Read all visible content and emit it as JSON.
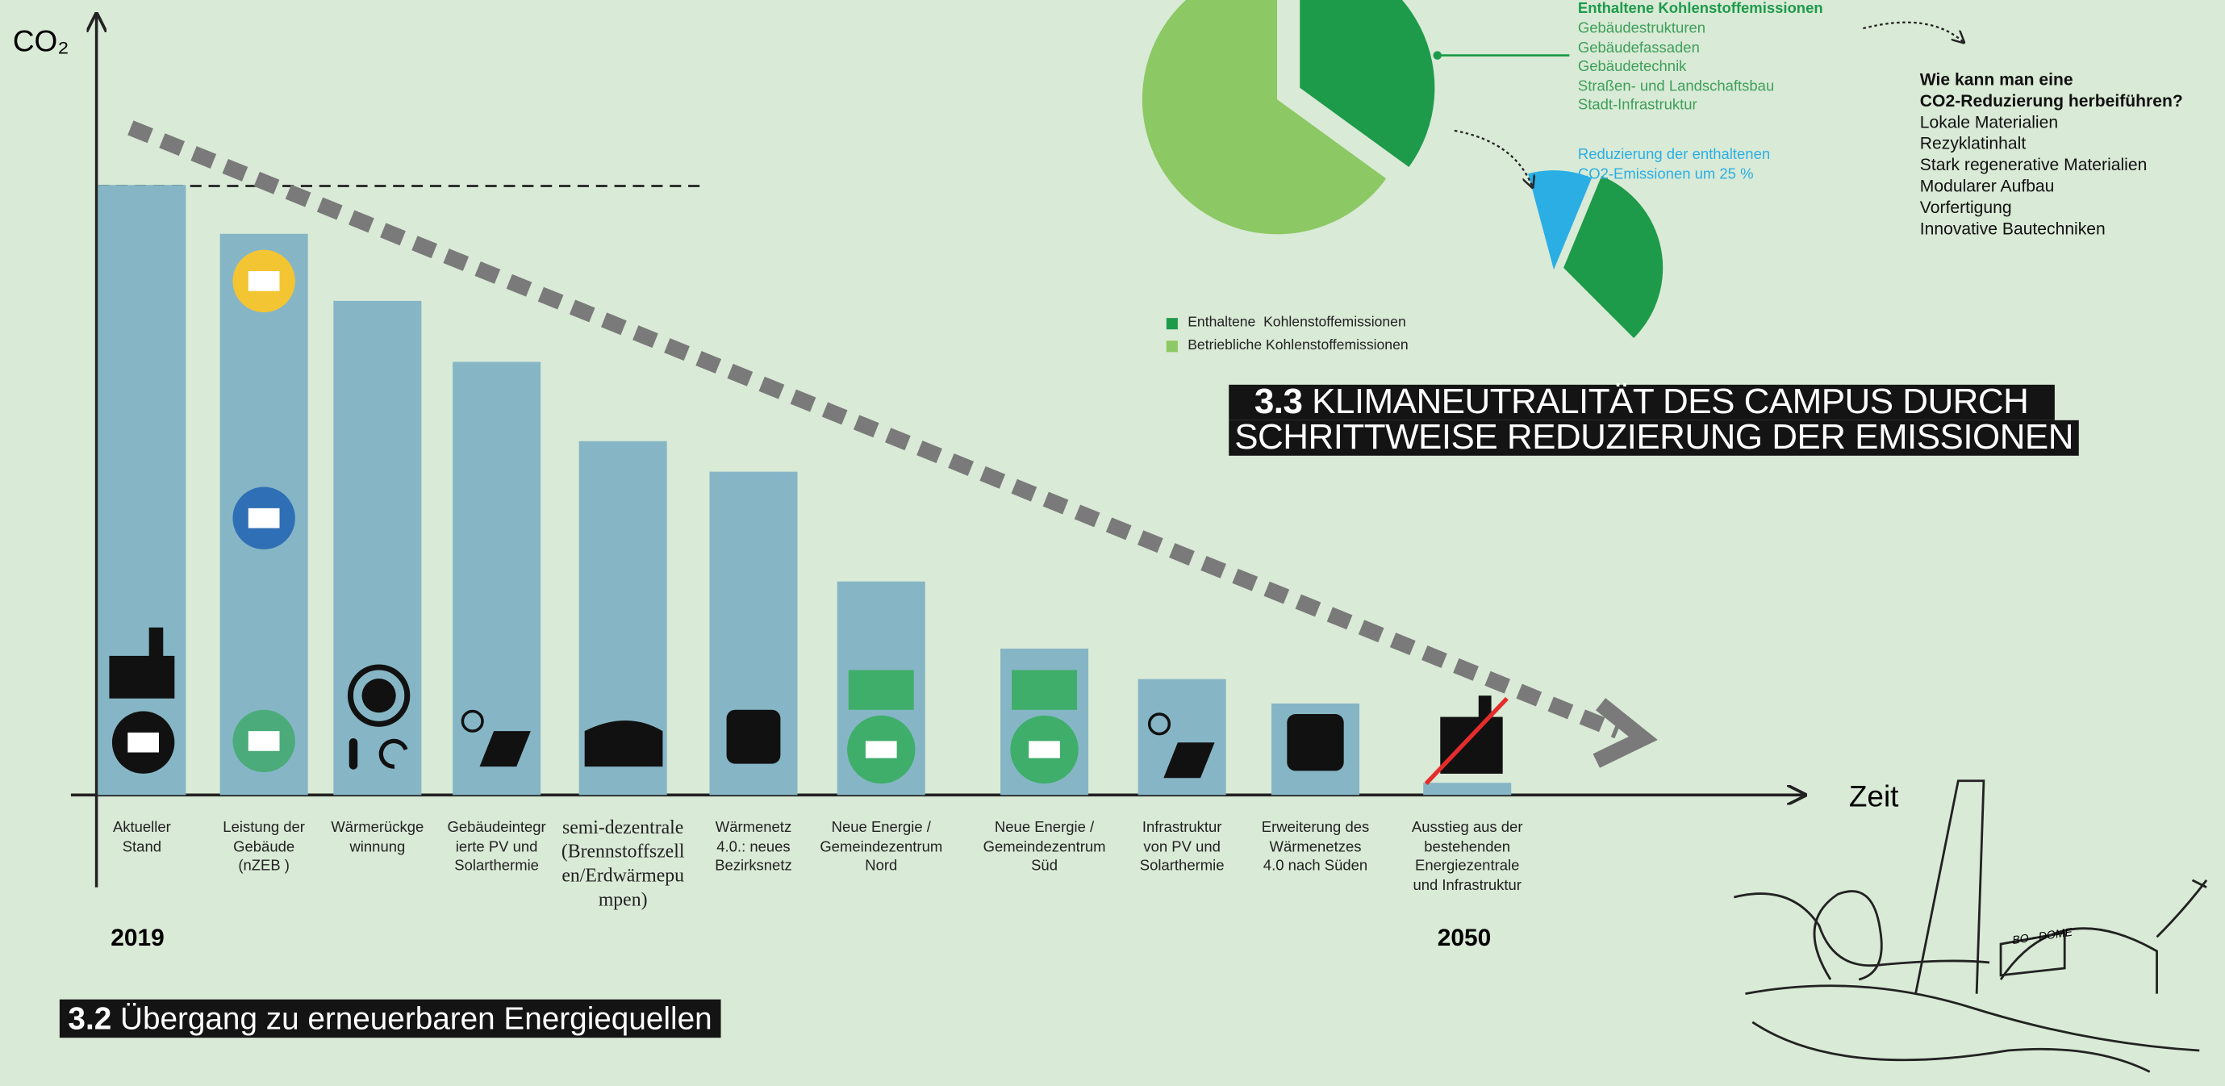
{
  "chart_data": [
    {
      "type": "bar",
      "y_label": "CO₂",
      "x_label": "Zeit",
      "color": "#86b6c6",
      "categories": [
        "Aktueller\nStand",
        "Leistung der\nGebäude\n(nZEB )",
        "Wärmerückge\nwinnung",
        "Gebäudeintegr\nierte PV und\nSolarthermie",
        "semi-dezentrale\n(Brennstoffszell\nen/Erdwärmepu\nmpen)",
        "Wärmenetz\n4.0.: neues\nBezirksnetz",
        "Neue Energie /\nGemeindezentrum\nNord",
        "Neue Energie /\nGemeindezentrum\nSüd",
        "Infrastruktur\nvon PV und\nSolarthermie",
        "Erweiterung des\nWärmenetzes\n4.0  nach Süden",
        "Ausstieg aus der\nbestehenden\nEnergiezentrale\nund Infrastruktur"
      ],
      "values": [
        100,
        92,
        81,
        71,
        58,
        53,
        35,
        24,
        19,
        15,
        2
      ],
      "ylim": [
        0,
        128
      ],
      "start_label": "2019",
      "end_label": "2050",
      "title_number": "3.2",
      "title": "Übergang zu erneuerbaren Energiequellen"
    },
    {
      "type": "pie",
      "categories": [
        "Enthaltene  Kohlenstoffemissionen",
        "Betriebliche Kohlenstoffemissionen"
      ],
      "values": [
        35,
        65
      ],
      "colors": [
        "#1e9a4b",
        "#8cc864"
      ],
      "title_number": "3.3",
      "title": [
        "KLIMANEUTRALITÄT DES CAMPUS DURCH",
        "SCHRITTWEISE REDUZIERUNG DER EMISSIONEN"
      ],
      "breakdown": {
        "title": "Enthaltene Kohlenstoffemissionen",
        "items": [
          "Gebäudestrukturen",
          "Gebäudefassaden",
          "Gebäudetechnik",
          "Straßen- und Landschaftsbau",
          "Stadt-Infrastruktur"
        ]
      },
      "reduction": {
        "label": "Reduzierung der enthaltenen\nCO2-Emissionen um 25 %",
        "values": [
          25,
          75
        ],
        "colors": [
          "#2aaee4",
          "#1e9a4b"
        ]
      }
    }
  ],
  "measures": {
    "question": "Wie kann man eine\nCO2-Reduzierung herbeiführen?",
    "items": [
      "Lokale Materialien",
      "Rezyklatinhalt",
      "Stark regenerative Materialien",
      "Modularer Aufbau",
      "Vorfertigung",
      "Innovative Bautechniken"
    ]
  },
  "sketch_label": "BO - DOME"
}
